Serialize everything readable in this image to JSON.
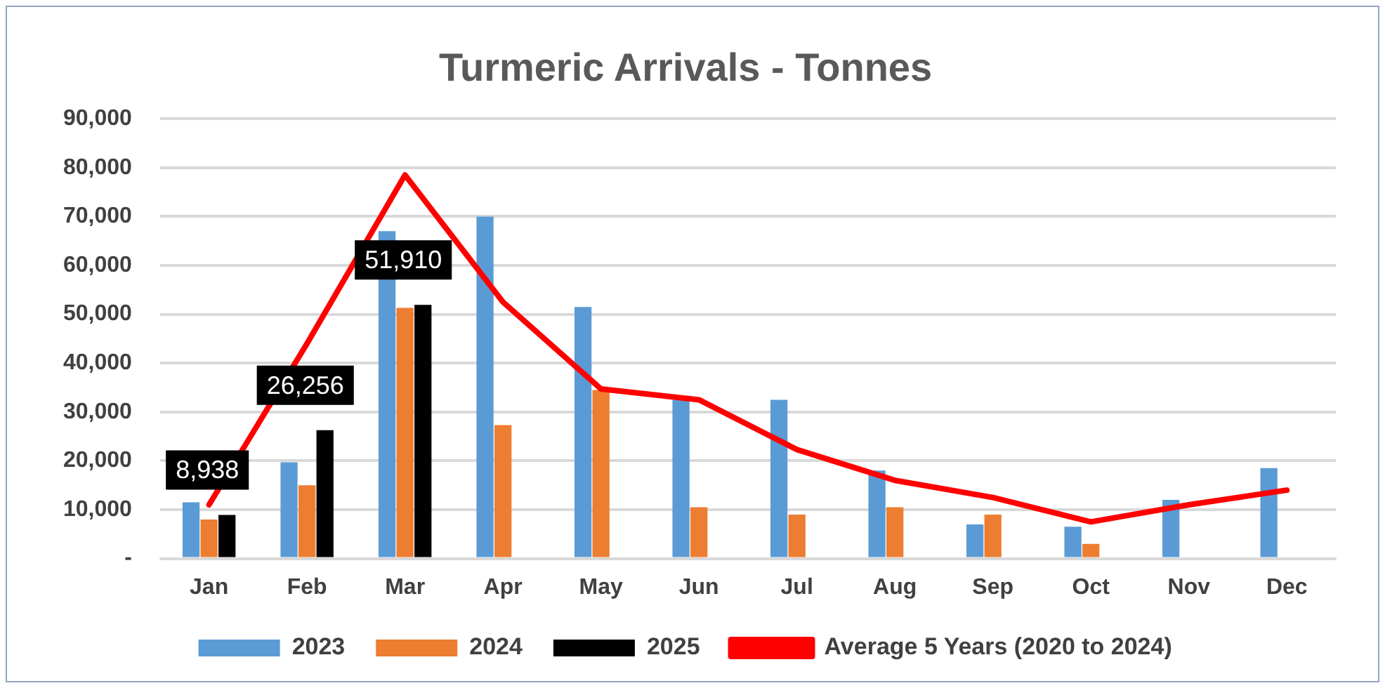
{
  "chart_data": {
    "type": "bar",
    "title": "Turmeric Arrivals - Tonnes",
    "categories": [
      "Jan",
      "Feb",
      "Mar",
      "Apr",
      "May",
      "Jun",
      "Jul",
      "Aug",
      "Sep",
      "Oct",
      "Nov",
      "Dec"
    ],
    "series": [
      {
        "name": "2023",
        "color": "#5b9bd5",
        "values": [
          11500,
          19700,
          67000,
          70000,
          51500,
          32500,
          32500,
          18000,
          7000,
          6500,
          12000,
          18500
        ]
      },
      {
        "name": "2024",
        "color": "#ed7d31",
        "values": [
          8000,
          15000,
          51300,
          27300,
          34500,
          10500,
          9000,
          10500,
          9000,
          3000,
          null,
          null
        ]
      },
      {
        "name": "2025",
        "color": "#000000",
        "values": [
          8938,
          26256,
          51910,
          null,
          null,
          null,
          null,
          null,
          null,
          null,
          null,
          null
        ],
        "value_labels": [
          "8,938",
          "26,256",
          "51,910",
          null,
          null,
          null,
          null,
          null,
          null,
          null,
          null,
          null
        ]
      },
      {
        "name": "Average 5 Years (2020 to 2024)",
        "type": "line",
        "color": "#ff0000",
        "marker": "none",
        "values": [
          11000,
          44000,
          78500,
          52500,
          34700,
          32500,
          22300,
          16000,
          12500,
          7500,
          11000,
          14000
        ]
      }
    ],
    "ylim": [
      0,
      90000
    ],
    "yticks": [
      {
        "value": 0,
        "label": "-"
      },
      {
        "value": 10000,
        "label": "10,000"
      },
      {
        "value": 20000,
        "label": "20,000"
      },
      {
        "value": 30000,
        "label": "30,000"
      },
      {
        "value": 40000,
        "label": "40,000"
      },
      {
        "value": 50000,
        "label": "50,000"
      },
      {
        "value": 60000,
        "label": "60,000"
      },
      {
        "value": 70000,
        "label": "70,000"
      },
      {
        "value": 80000,
        "label": "80,000"
      },
      {
        "value": 90000,
        "label": "90,000"
      }
    ],
    "grid": "y",
    "legend": "bottom"
  }
}
